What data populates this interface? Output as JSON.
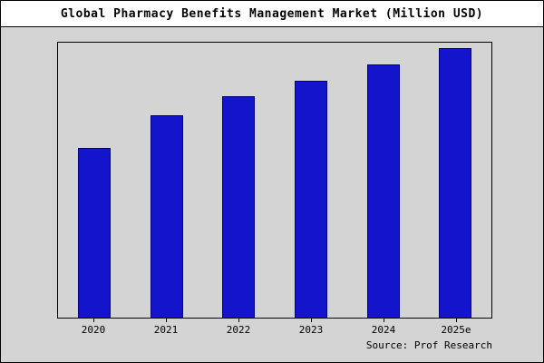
{
  "chart_data": {
    "type": "bar",
    "title": "Global Pharmacy Benefits Management Market (Million USD)",
    "categories": [
      "2020",
      "2021",
      "2022",
      "2023",
      "2024",
      "2025e"
    ],
    "values": [
      63,
      75,
      82,
      88,
      94,
      100
    ],
    "xlabel": "",
    "ylabel": "",
    "ylim": [
      0,
      102
    ],
    "grid": false,
    "legend_position": "none",
    "bar_color": "#1414cc",
    "bar_edge_color": "#000080",
    "page_background": "#d4d4d4",
    "title_background": "#ffffff"
  },
  "source": "Source: Prof Research"
}
